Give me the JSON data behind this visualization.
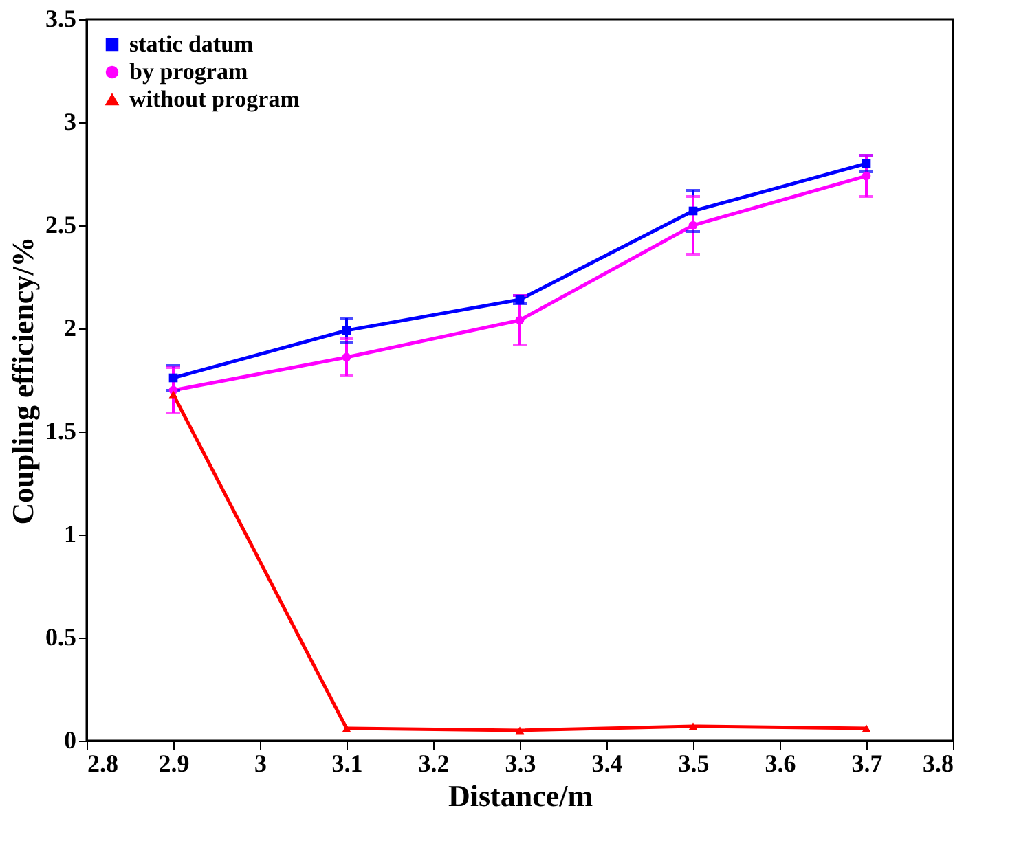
{
  "chart_data": {
    "type": "line",
    "xlabel": "Distance/m",
    "ylabel": "Coupling efficiency/%",
    "x": [
      2.9,
      3.1,
      3.3,
      3.5,
      3.7
    ],
    "series": [
      {
        "name": "static datum",
        "color": "#0000ff",
        "marker": "square",
        "values": [
          1.76,
          1.99,
          2.14,
          2.57,
          2.8
        ],
        "errors": [
          0.06,
          0.06,
          0.02,
          0.1,
          0.04
        ]
      },
      {
        "name": "by program",
        "color": "#ff00ff",
        "marker": "circle",
        "values": [
          1.7,
          1.86,
          2.04,
          2.5,
          2.74
        ],
        "errors": [
          0.11,
          0.09,
          0.12,
          0.14,
          0.1
        ]
      },
      {
        "name": "without program",
        "color": "#ff0000",
        "marker": "triangle",
        "values": [
          1.68,
          0.06,
          0.05,
          0.07,
          0.06
        ]
      }
    ],
    "xlim": [
      2.8,
      3.8
    ],
    "xticks": [
      2.8,
      2.9,
      3,
      3.1,
      3.2,
      3.3,
      3.4,
      3.5,
      3.6,
      3.7,
      3.8
    ],
    "ylim": [
      0,
      3.5
    ],
    "yticks": [
      0,
      0.5,
      1,
      1.5,
      2,
      2.5,
      3,
      3.5
    ],
    "grid": false,
    "legend": "top left",
    "line_style": "solid"
  }
}
